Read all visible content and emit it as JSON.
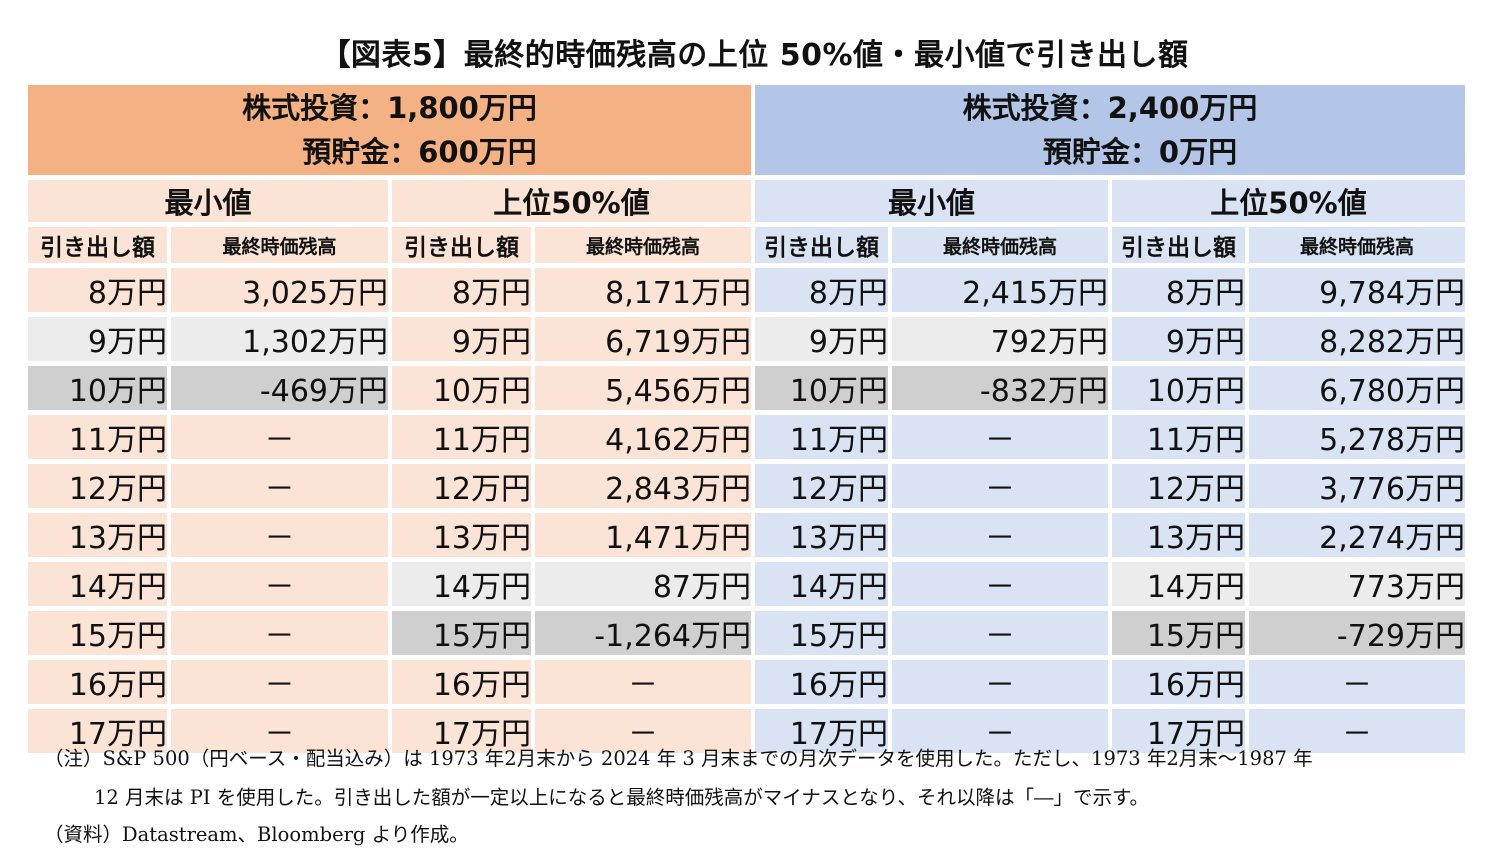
{
  "title": "【図表5】最終的時価残高の上位 50%値・最小値で引き出し額",
  "scenarios": [
    {
      "line1": "株式投資：1,800万円",
      "line2": "預貯金：600万円"
    },
    {
      "line1": "株式投資：2,400万円",
      "line2": "預貯金：0万円"
    }
  ],
  "group_labels": {
    "min": "最小値",
    "top50": "上位50%値"
  },
  "col_labels": {
    "withdrawal": "引き出し額",
    "balance": "最終時価残高"
  },
  "rows": [
    {
      "a_min_w": "8万円",
      "a_min_b": "3,025万円",
      "a_top_w": "8万円",
      "a_top_b": "8,171万円",
      "b_min_w": "8万円",
      "b_min_b": "2,415万円",
      "b_top_w": "8万円",
      "b_top_b": "9,784万円"
    },
    {
      "a_min_w": "9万円",
      "a_min_b": "1,302万円",
      "a_top_w": "9万円",
      "a_top_b": "6,719万円",
      "b_min_w": "9万円",
      "b_min_b": "792万円",
      "b_top_w": "9万円",
      "b_top_b": "8,282万円"
    },
    {
      "a_min_w": "10万円",
      "a_min_b": "-469万円",
      "a_top_w": "10万円",
      "a_top_b": "5,456万円",
      "b_min_w": "10万円",
      "b_min_b": "-832万円",
      "b_top_w": "10万円",
      "b_top_b": "6,780万円"
    },
    {
      "a_min_w": "11万円",
      "a_min_b": "－",
      "a_top_w": "11万円",
      "a_top_b": "4,162万円",
      "b_min_w": "11万円",
      "b_min_b": "－",
      "b_top_w": "11万円",
      "b_top_b": "5,278万円"
    },
    {
      "a_min_w": "12万円",
      "a_min_b": "－",
      "a_top_w": "12万円",
      "a_top_b": "2,843万円",
      "b_min_w": "12万円",
      "b_min_b": "－",
      "b_top_w": "12万円",
      "b_top_b": "3,776万円"
    },
    {
      "a_min_w": "13万円",
      "a_min_b": "－",
      "a_top_w": "13万円",
      "a_top_b": "1,471万円",
      "b_min_w": "13万円",
      "b_min_b": "－",
      "b_top_w": "13万円",
      "b_top_b": "2,274万円"
    },
    {
      "a_min_w": "14万円",
      "a_min_b": "－",
      "a_top_w": "14万円",
      "a_top_b": "87万円",
      "b_min_w": "14万円",
      "b_min_b": "－",
      "b_top_w": "14万円",
      "b_top_b": "773万円"
    },
    {
      "a_min_w": "15万円",
      "a_min_b": "－",
      "a_top_w": "15万円",
      "a_top_b": "-1,264万円",
      "b_min_w": "15万円",
      "b_min_b": "－",
      "b_top_w": "15万円",
      "b_top_b": "-729万円"
    },
    {
      "a_min_w": "16万円",
      "a_min_b": "－",
      "a_top_w": "16万円",
      "a_top_b": "－",
      "b_min_w": "16万円",
      "b_min_b": "－",
      "b_top_w": "16万円",
      "b_top_b": "－"
    },
    {
      "a_min_w": "17万円",
      "a_min_b": "－",
      "a_top_w": "17万円",
      "a_top_b": "－",
      "b_min_w": "17万円",
      "b_min_b": "－",
      "b_top_w": "17万円",
      "b_top_b": "－"
    }
  ],
  "colors": {
    "scenario_a_header": "#f4b183",
    "scenario_a_cell": "#fbe3d6",
    "scenario_b_header": "#b4c6e7",
    "scenario_b_cell": "#dae3f3",
    "near_zero_highlight": "#ececec",
    "negative_highlight": "#cfcfcf"
  },
  "notes": [
    "（注）S&P 500（円ベース・配当込み）は 1973 年2月末から 2024 年 3 月末までの月次データを使用した。ただし、1973 年2月末～1987 年",
    "12 月末は PI を使用した。引き出した額が一定以上になると最終時価残高がマイナスとなり、それ以降は「―」で示す。",
    "（資料）Datastream、Bloomberg より作成。"
  ]
}
